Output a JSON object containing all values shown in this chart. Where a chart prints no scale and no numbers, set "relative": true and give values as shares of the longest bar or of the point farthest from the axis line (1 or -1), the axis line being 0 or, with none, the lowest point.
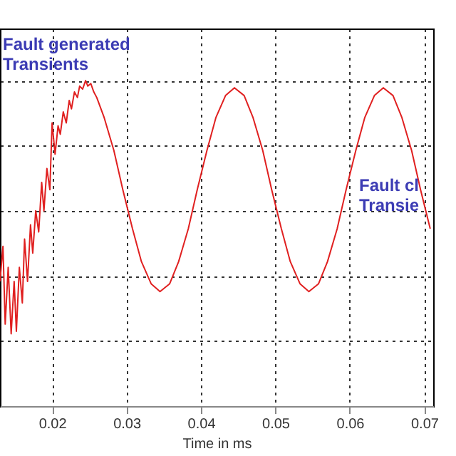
{
  "chart_data": {
    "type": "line",
    "xlabel": "Time in ms",
    "relative": true,
    "grid": true,
    "xlim": [
      0.013,
      0.0712
    ],
    "xticks": [
      0.02,
      0.03,
      0.04,
      0.05,
      0.06,
      0.07
    ],
    "annotations": [
      "Fault generated\nTransients",
      "Fault cl\nTransie"
    ],
    "series": [
      {
        "color": "#e02020",
        "x": [
          0.013,
          0.0134,
          0.0137,
          0.0141,
          0.0145,
          0.0149,
          0.0152,
          0.0156,
          0.016,
          0.0163,
          0.0167,
          0.0171,
          0.0174,
          0.0178,
          0.0182,
          0.0186,
          0.0189,
          0.0193,
          0.0197,
          0.02,
          0.0204,
          0.0208,
          0.0211,
          0.0215,
          0.0219,
          0.0223,
          0.0226,
          0.023,
          0.0234,
          0.0237,
          0.0241,
          0.0245,
          0.0248,
          0.0252,
          0.0256,
          0.026,
          0.027,
          0.0283,
          0.0295,
          0.0308,
          0.032,
          0.0333,
          0.0345,
          0.0358,
          0.037,
          0.0383,
          0.0395,
          0.0408,
          0.042,
          0.0433,
          0.0445,
          0.0458,
          0.047,
          0.0483,
          0.0495,
          0.0508,
          0.052,
          0.0533,
          0.0545,
          0.0558,
          0.057,
          0.0583,
          0.0595,
          0.0608,
          0.062,
          0.0633,
          0.0645,
          0.0658,
          0.067,
          0.0683,
          0.0695,
          0.0708
        ],
        "values": [
          0.383,
          0.491,
          0.252,
          0.426,
          0.222,
          0.383,
          0.23,
          0.426,
          0.317,
          0.513,
          0.383,
          0.557,
          0.47,
          0.6,
          0.535,
          0.687,
          0.6,
          0.73,
          0.665,
          0.87,
          0.774,
          0.861,
          0.835,
          0.904,
          0.87,
          0.939,
          0.913,
          0.965,
          0.948,
          0.983,
          0.974,
          1,
          0.983,
          0.991,
          0.965,
          0.948,
          0.886,
          0.785,
          0.665,
          0.545,
          0.444,
          0.376,
          0.352,
          0.376,
          0.444,
          0.545,
          0.665,
          0.785,
          0.886,
          0.954,
          0.978,
          0.954,
          0.886,
          0.785,
          0.665,
          0.545,
          0.444,
          0.376,
          0.352,
          0.376,
          0.444,
          0.545,
          0.665,
          0.785,
          0.886,
          0.954,
          0.978,
          0.954,
          0.886,
          0.785,
          0.665,
          0.545
        ]
      }
    ]
  }
}
